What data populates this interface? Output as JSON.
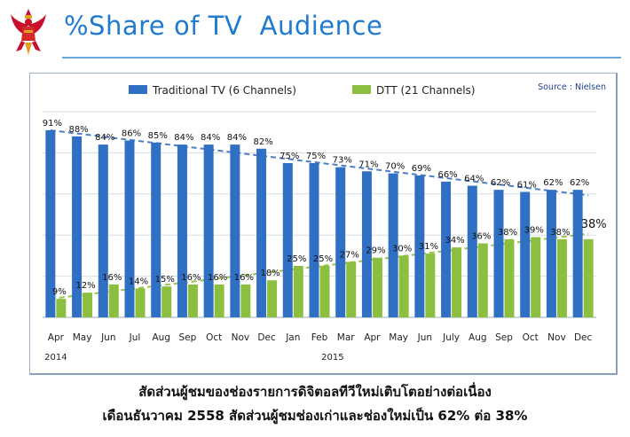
{
  "header": {
    "title": "%Share of TV  Audience",
    "logo": "garuda-emblem-icon"
  },
  "source": "Source : Nielsen",
  "colors": {
    "traditional": "#2f6fc4",
    "dtt": "#8cbf3f",
    "title": "#1f7ad1"
  },
  "chart_data": {
    "type": "bar",
    "categories": [
      "Apr",
      "May",
      "Jun",
      "Jul",
      "Aug",
      "Sep",
      "Oct",
      "Nov",
      "Dec",
      "Jan",
      "Feb",
      "Mar",
      "Apr",
      "May",
      "Jun",
      "July",
      "Aug",
      "Sep",
      "Oct",
      "Nov",
      "Dec"
    ],
    "year_labels": [
      {
        "label": "2014",
        "category_index": 0
      },
      {
        "label": "2015",
        "category_index": 9
      }
    ],
    "series": [
      {
        "name": "Traditional TV (6 Channels)",
        "values": [
          91,
          88,
          84,
          86,
          85,
          84,
          84,
          84,
          82,
          75,
          75,
          73,
          71,
          70,
          69,
          66,
          64,
          62,
          61,
          62,
          62
        ]
      },
      {
        "name": "DTT (21 Channels)",
        "values": [
          9,
          12,
          16,
          14,
          15,
          16,
          16,
          16,
          18,
          25,
          25,
          27,
          29,
          30,
          31,
          34,
          36,
          38,
          39,
          38,
          38
        ]
      }
    ],
    "data_labels": {
      "Traditional TV (6 Channels)": [
        "91%",
        "88%",
        "84%",
        "86%",
        "85%",
        "84%",
        "84%",
        "84%",
        "82%",
        "75%",
        "75%",
        "73%",
        "71%",
        "70%",
        "69%",
        "66%",
        "64%",
        "62%",
        "61%",
        "62%",
        "62%"
      ],
      "DTT (21 Channels)": [
        "9%",
        "12%",
        "16%",
        "14%",
        "15%",
        "16%",
        "16%",
        "16%",
        "18%",
        "25%",
        "25%",
        "27%",
        "29%",
        "30%",
        "31%",
        "34%",
        "36%",
        "38%",
        "39%",
        "38%",
        "38%"
      ]
    },
    "trendlines": true,
    "ylim": [
      0,
      100
    ],
    "grid": true,
    "legend_position": "top"
  },
  "caption": {
    "line1": "สัดส่วนผู้ชมของช่องรายการดิจิตอลทีวีใหม่เติบโตอย่างต่อเนื่อง",
    "line2": "เดือนธันวาคม 2558 สัดส่วนผู้ชมช่องเก่าและช่องใหม่เป็น 62% ต่อ 38%"
  }
}
